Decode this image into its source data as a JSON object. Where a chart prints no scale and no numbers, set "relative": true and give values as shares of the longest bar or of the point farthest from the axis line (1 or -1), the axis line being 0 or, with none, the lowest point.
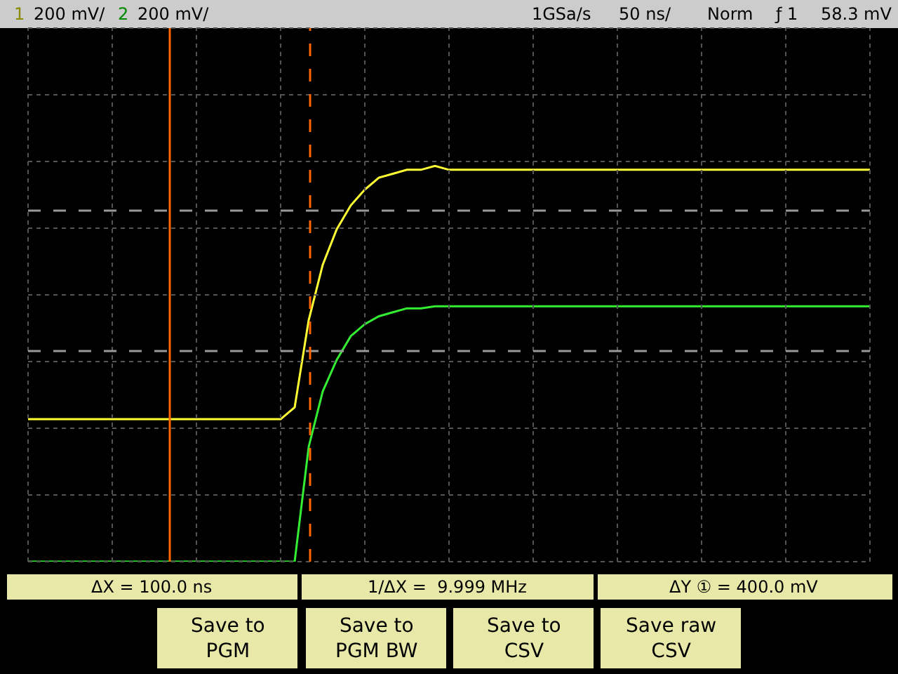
{
  "chart_data": {
    "type": "line",
    "relative": true,
    "categories": [
      null,
      null,
      null,
      null,
      null,
      null,
      null,
      null,
      null,
      null,
      null,
      null,
      null,
      null,
      null,
      null,
      null,
      null,
      null,
      null,
      null,
      null,
      null,
      null,
      null,
      null,
      null,
      null,
      null,
      null,
      null,
      null,
      null,
      null,
      null,
      null,
      null,
      null,
      null,
      null,
      null,
      null,
      null,
      null,
      null,
      null,
      null,
      null,
      null,
      null,
      null,
      null,
      null,
      null,
      null,
      null,
      null,
      null,
      null,
      null,
      null
    ],
    "series": [
      {
        "color": "#ffff33",
        "values": [
          0.36,
          0.36,
          0.36,
          0.36,
          0.36,
          0.36,
          0.36,
          0.36,
          0.36,
          0.36,
          0.36,
          0.36,
          0.36,
          0.36,
          0.36,
          0.36,
          0.36,
          0.36,
          0.36,
          0.39,
          0.61,
          0.75,
          0.84,
          0.9,
          0.94,
          0.97,
          0.98,
          0.99,
          0.99,
          1,
          0.99,
          0.99,
          0.99,
          0.99,
          0.99,
          0.99,
          0.99,
          0.99,
          0.99,
          0.99,
          0.99,
          0.99,
          0.99,
          0.99,
          0.99,
          0.99,
          0.99,
          0.99,
          0.99,
          0.99,
          0.99,
          0.99,
          0.99,
          0.99,
          0.99,
          0.99,
          0.99,
          0.99,
          0.99,
          0.99,
          0.99
        ]
      },
      {
        "color": "#33ee33",
        "values": [
          0,
          0,
          0,
          0,
          0,
          0,
          0,
          0,
          0,
          0,
          0,
          0,
          0,
          0,
          0,
          0,
          0,
          0,
          0,
          0,
          0.29,
          0.43,
          0.51,
          0.57,
          0.6,
          0.62,
          0.63,
          0.64,
          0.64,
          0.645,
          0.645,
          0.645,
          0.645,
          0.645,
          0.645,
          0.645,
          0.645,
          0.645,
          0.645,
          0.645,
          0.645,
          0.645,
          0.645,
          0.645,
          0.645,
          0.645,
          0.645,
          0.645,
          0.645,
          0.645,
          0.645,
          0.645,
          0.645,
          0.645,
          0.645,
          0.645,
          0.645,
          0.645,
          0.645,
          0.645,
          0.645
        ]
      }
    ],
    "annotations": [
      "1",
      "200 mV/",
      "2",
      "200 mV/",
      "1GSa/s",
      "50 ns/",
      "Norm",
      "ƒ 1",
      "58.3 mV",
      "ΔX = 100.0 ns",
      "1/ΔX =  9.999 MHz",
      "ΔY ① = 400.0 mV",
      "Save to\nPGM",
      "Save to\nPGM BW",
      "Save to\nCSV",
      "Save raw\nCSV"
    ],
    "ref_lines": [
      {
        "axis": "y",
        "value": 0.887,
        "color": "#999999",
        "line_style": "dashed"
      },
      {
        "axis": "y",
        "value": 0.532,
        "color": "#999999",
        "line_style": "dashed"
      }
    ],
    "grid": true,
    "marker": "none",
    "line_style": "solid"
  }
}
